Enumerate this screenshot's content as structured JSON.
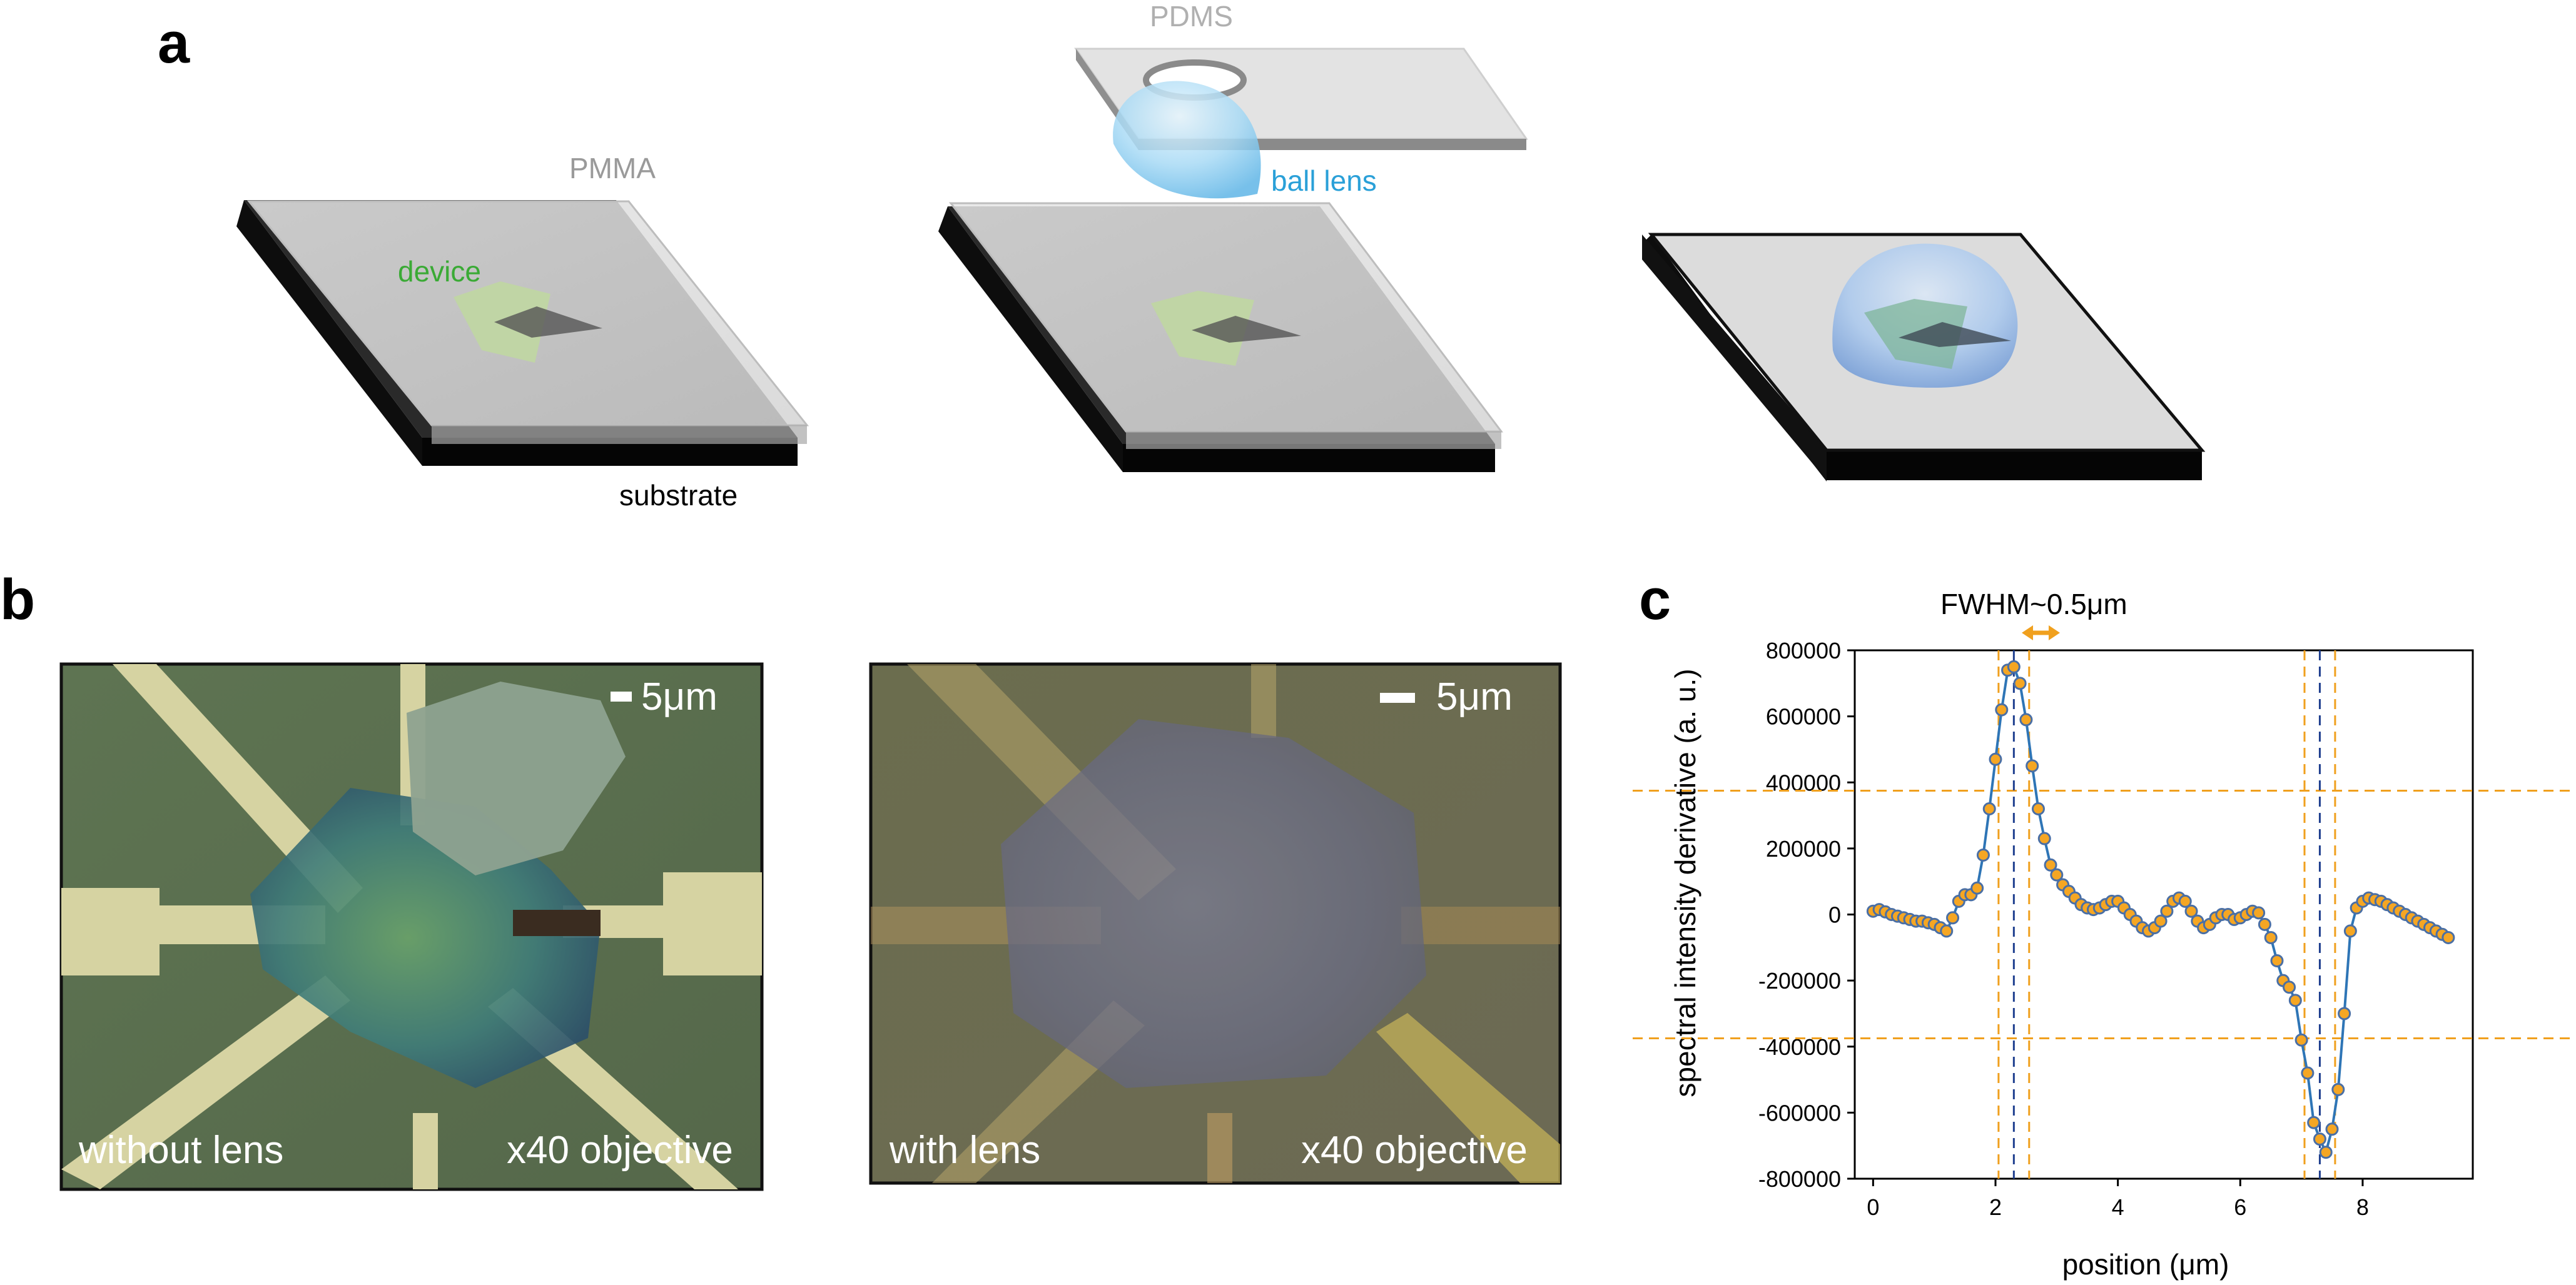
{
  "panels": {
    "a": {
      "letter": "a",
      "labels": {
        "pmma": "PMMA",
        "pdms": "PDMS",
        "device": "device",
        "ball_lens": "ball lens",
        "substrate": "substrate"
      },
      "colors": {
        "pmma_label": "#9a9a9a",
        "device_label": "#3aaa35",
        "ball_lens_label": "#2aa0d8",
        "substrate": "#111111",
        "pmma_layer": "#d9d9d9",
        "lens": "#9fd3f2"
      }
    },
    "b": {
      "letter": "b",
      "left": {
        "scale_bar": "5μm",
        "caption_left": "without lens",
        "caption_right": "x40 objective"
      },
      "right": {
        "scale_bar": "5μm",
        "caption_left": "with lens",
        "caption_right": "x40 objective"
      }
    },
    "c": {
      "letter": "c",
      "annotation": "FWHM~0.5μm",
      "colors": {
        "series_line": "#2e75b6",
        "marker_fill": "#f5a623",
        "marker_edge": "#4a6fa5",
        "guide_orange": "#f0a01e",
        "guide_blue": "#1f3f8f"
      }
    }
  },
  "chart_data": {
    "type": "scatter",
    "title": "",
    "xlabel": "position (μm)",
    "ylabel": "spectral intensity derivative (a. u.)",
    "xlim": [
      -0.3,
      9.8
    ],
    "ylim": [
      -800000,
      800000
    ],
    "xticks": [
      0,
      2,
      4,
      6,
      8
    ],
    "xtick_labels": [
      "0",
      "2",
      "4",
      "6",
      "8"
    ],
    "yticks": [
      800000,
      600000,
      400000,
      200000,
      0,
      -200000,
      -400000,
      -600000,
      -800000
    ],
    "ytick_labels": [
      "800000",
      "600000",
      "400000",
      "200000",
      "0",
      "-200000",
      "-400000",
      "-600000",
      "-800000"
    ],
    "grid": false,
    "legend": "none",
    "series": [
      {
        "style": "line with circle markers",
        "x": [
          0.0,
          0.1,
          0.2,
          0.3,
          0.4,
          0.5,
          0.6,
          0.7,
          0.8,
          0.9,
          1.0,
          1.1,
          1.2,
          1.3,
          1.4,
          1.5,
          1.6,
          1.7,
          1.8,
          1.9,
          2.0,
          2.1,
          2.2,
          2.3,
          2.4,
          2.5,
          2.6,
          2.7,
          2.8,
          2.9,
          3.0,
          3.1,
          3.2,
          3.3,
          3.4,
          3.5,
          3.6,
          3.7,
          3.8,
          3.9,
          4.0,
          4.1,
          4.2,
          4.3,
          4.4,
          4.5,
          4.6,
          4.7,
          4.8,
          4.9,
          5.0,
          5.1,
          5.2,
          5.3,
          5.4,
          5.5,
          5.6,
          5.7,
          5.8,
          5.9,
          6.0,
          6.1,
          6.2,
          6.3,
          6.4,
          6.5,
          6.6,
          6.7,
          6.8,
          6.9,
          7.0,
          7.1,
          7.2,
          7.3,
          7.4,
          7.5,
          7.6,
          7.7,
          7.8,
          7.9,
          8.0,
          8.1,
          8.2,
          8.3,
          8.4,
          8.5,
          8.6,
          8.7,
          8.8,
          8.9,
          9.0,
          9.1,
          9.2,
          9.3,
          9.4
        ],
        "y": [
          10000,
          15000,
          8000,
          0,
          -5000,
          -10000,
          -15000,
          -20000,
          -20000,
          -25000,
          -30000,
          -40000,
          -50000,
          -10000,
          40000,
          60000,
          60000,
          80000,
          180000,
          320000,
          470000,
          620000,
          740000,
          750000,
          700000,
          590000,
          450000,
          320000,
          230000,
          150000,
          120000,
          90000,
          70000,
          50000,
          30000,
          20000,
          15000,
          20000,
          30000,
          40000,
          40000,
          20000,
          0,
          -20000,
          -40000,
          -50000,
          -40000,
          -20000,
          10000,
          40000,
          50000,
          40000,
          10000,
          -20000,
          -40000,
          -30000,
          -10000,
          0,
          0,
          -15000,
          -10000,
          0,
          10000,
          5000,
          -30000,
          -70000,
          -140000,
          -200000,
          -220000,
          -260000,
          -380000,
          -480000,
          -630000,
          -680000,
          -720000,
          -650000,
          -530000,
          -300000,
          -50000,
          20000,
          40000,
          50000,
          45000,
          40000,
          30000,
          20000,
          10000,
          0,
          -10000,
          -20000,
          -30000,
          -40000,
          -50000,
          -60000,
          -70000
        ]
      }
    ],
    "reference_lines": {
      "horizontal_orange": [
        375000,
        -375000
      ],
      "vertical_orange": [
        2.05,
        2.55,
        7.05,
        7.55
      ],
      "vertical_blue": [
        2.3,
        7.3
      ]
    }
  }
}
